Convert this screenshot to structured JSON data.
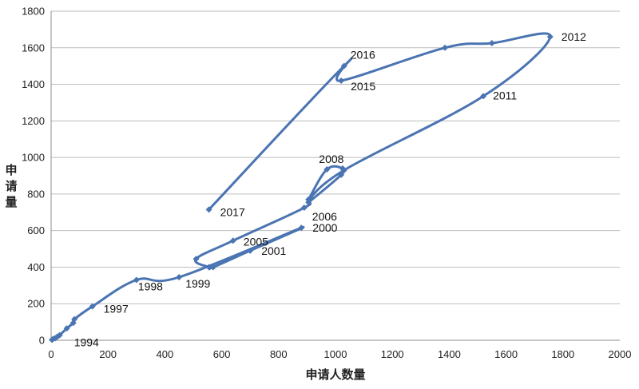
{
  "chart_data": {
    "type": "line",
    "xlabel": "申请人数量",
    "ylabel": "申请量",
    "xlim": [
      0,
      2000
    ],
    "ylim": [
      0,
      1800
    ],
    "x_ticks": [
      0,
      200,
      400,
      600,
      800,
      1000,
      1200,
      1400,
      1600,
      1800,
      2000
    ],
    "y_ticks": [
      0,
      200,
      400,
      600,
      800,
      1000,
      1200,
      1400,
      1600,
      1800
    ],
    "grid": "horizontal",
    "series_color": "#4a74b2",
    "points": [
      {
        "x": 3,
        "y": 3,
        "label": ""
      },
      {
        "x": 8,
        "y": 8,
        "label": ""
      },
      {
        "x": 15,
        "y": 12,
        "label": ""
      },
      {
        "x": 22,
        "y": 20,
        "label": ""
      },
      {
        "x": 30,
        "y": 28,
        "label": "1994"
      },
      {
        "x": 55,
        "y": 65,
        "label": ""
      },
      {
        "x": 78,
        "y": 95,
        "label": ""
      },
      {
        "x": 82,
        "y": 115,
        "label": ""
      },
      {
        "x": 145,
        "y": 185,
        "label": "1997"
      },
      {
        "x": 300,
        "y": 330,
        "label": "1998"
      },
      {
        "x": 450,
        "y": 345,
        "label": "1999"
      },
      {
        "x": 880,
        "y": 615,
        "label": "2000"
      },
      {
        "x": 700,
        "y": 490,
        "label": "2001"
      },
      {
        "x": 570,
        "y": 400,
        "label": ""
      },
      {
        "x": 555,
        "y": 400,
        "label": ""
      },
      {
        "x": 510,
        "y": 445,
        "label": ""
      },
      {
        "x": 640,
        "y": 545,
        "label": "2005"
      },
      {
        "x": 890,
        "y": 725,
        "label": "2006"
      },
      {
        "x": 905,
        "y": 770,
        "label": ""
      },
      {
        "x": 970,
        "y": 935,
        "label": "2008"
      },
      {
        "x": 1025,
        "y": 940,
        "label": ""
      },
      {
        "x": 1020,
        "y": 905,
        "label": ""
      },
      {
        "x": 905,
        "y": 755,
        "label": ""
      },
      {
        "x": 1030,
        "y": 930,
        "label": ""
      },
      {
        "x": 1520,
        "y": 1335,
        "label": "2011"
      },
      {
        "x": 1755,
        "y": 1660,
        "label": "2012"
      },
      {
        "x": 1550,
        "y": 1625,
        "label": ""
      },
      {
        "x": 1385,
        "y": 1600,
        "label": ""
      },
      {
        "x": 1020,
        "y": 1420,
        "label": "2015"
      },
      {
        "x": 1030,
        "y": 1500,
        "label": "2016"
      },
      {
        "x": 555,
        "y": 715,
        "label": "2017"
      }
    ]
  }
}
